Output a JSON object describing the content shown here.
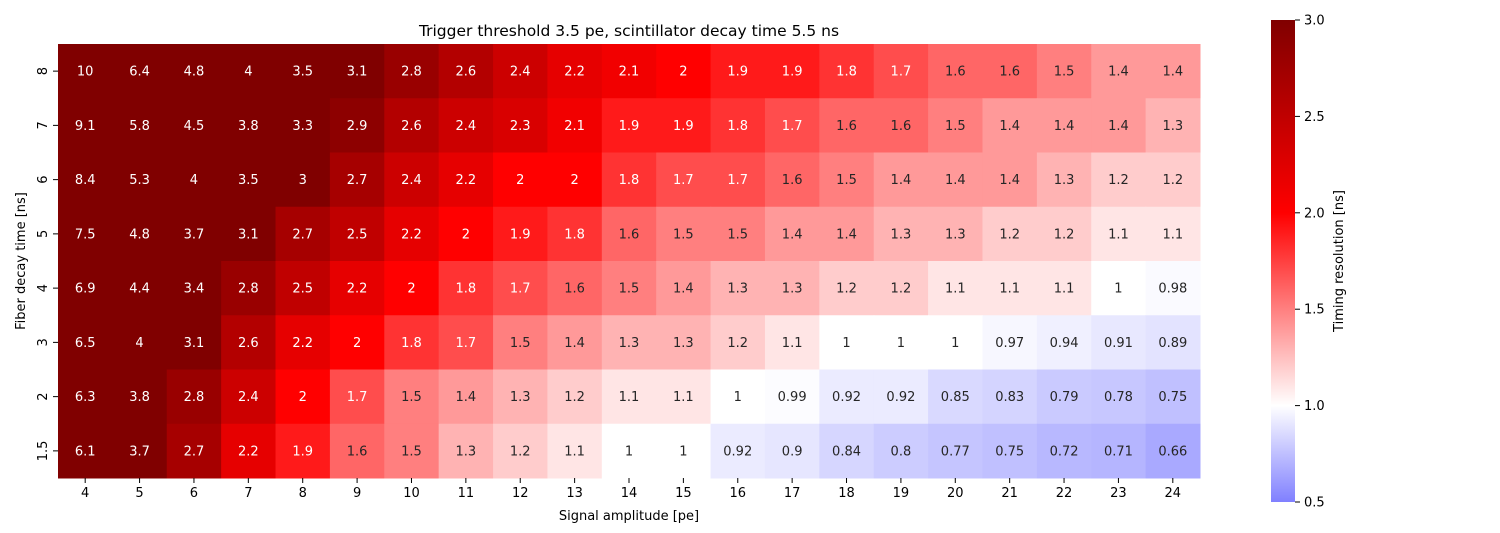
{
  "chart_data": {
    "type": "heatmap",
    "title": "Trigger threshold  3.5 pe, scintillator decay time 5.5 ns",
    "xlabel": "Signal amplitude [pe]",
    "ylabel": "Fiber decay time [ns]",
    "x": [
      "4",
      "5",
      "6",
      "7",
      "8",
      "9",
      "10",
      "11",
      "12",
      "13",
      "14",
      "15",
      "16",
      "17",
      "18",
      "19",
      "20",
      "21",
      "22",
      "23",
      "24"
    ],
    "y": [
      "8",
      "7",
      "6",
      "5",
      "4",
      "3",
      "2",
      "1.5"
    ],
    "values": [
      [
        10,
        6.4,
        4.8,
        4,
        3.5,
        3.1,
        2.8,
        2.6,
        2.4,
        2.2,
        2.1,
        2,
        1.9,
        1.9,
        1.8,
        1.7,
        1.6,
        1.6,
        1.5,
        1.4,
        1.4
      ],
      [
        9.1,
        5.8,
        4.5,
        3.8,
        3.3,
        2.9,
        2.6,
        2.4,
        2.3,
        2.1,
        1.9,
        1.9,
        1.8,
        1.7,
        1.6,
        1.6,
        1.5,
        1.4,
        1.4,
        1.4,
        1.3
      ],
      [
        8.4,
        5.3,
        4,
        3.5,
        3,
        2.7,
        2.4,
        2.2,
        2,
        2,
        1.8,
        1.7,
        1.7,
        1.6,
        1.5,
        1.4,
        1.4,
        1.4,
        1.3,
        1.2,
        1.2
      ],
      [
        7.5,
        4.8,
        3.7,
        3.1,
        2.7,
        2.5,
        2.2,
        2,
        1.9,
        1.8,
        1.6,
        1.5,
        1.5,
        1.4,
        1.4,
        1.3,
        1.3,
        1.2,
        1.2,
        1.1,
        1.1
      ],
      [
        6.9,
        4.4,
        3.4,
        2.8,
        2.5,
        2.2,
        2,
        1.8,
        1.7,
        1.6,
        1.5,
        1.4,
        1.3,
        1.3,
        1.2,
        1.2,
        1.1,
        1.1,
        1.1,
        1,
        0.98
      ],
      [
        6.5,
        4,
        3.1,
        2.6,
        2.2,
        2,
        1.8,
        1.7,
        1.5,
        1.4,
        1.3,
        1.3,
        1.2,
        1.1,
        1,
        1,
        1,
        0.97,
        0.94,
        0.91,
        0.89
      ],
      [
        6.3,
        3.8,
        2.8,
        2.4,
        2,
        1.7,
        1.5,
        1.4,
        1.3,
        1.2,
        1.1,
        1.1,
        1,
        0.99,
        0.92,
        0.92,
        0.85,
        0.83,
        0.79,
        0.78,
        0.75
      ],
      [
        6.1,
        3.7,
        2.7,
        2.2,
        1.9,
        1.6,
        1.5,
        1.3,
        1.2,
        1.1,
        1,
        1,
        0.92,
        0.9,
        0.84,
        0.8,
        0.77,
        0.75,
        0.72,
        0.71,
        0.66
      ]
    ],
    "colorbar": {
      "label": "Timing resolution [ns]",
      "range": [
        0.5,
        3.0
      ],
      "ticks": [
        "0.5",
        "1.0",
        "1.5",
        "2.0",
        "2.5",
        "3.0"
      ],
      "colormap": "seismic-like (blue-white-red)",
      "colors": {
        "low": "#8080ff",
        "mid": "#ffffff",
        "high": "#ff0000",
        "top": "#800000"
      }
    },
    "grid": false,
    "annotations": "cell values printed in each cell"
  }
}
